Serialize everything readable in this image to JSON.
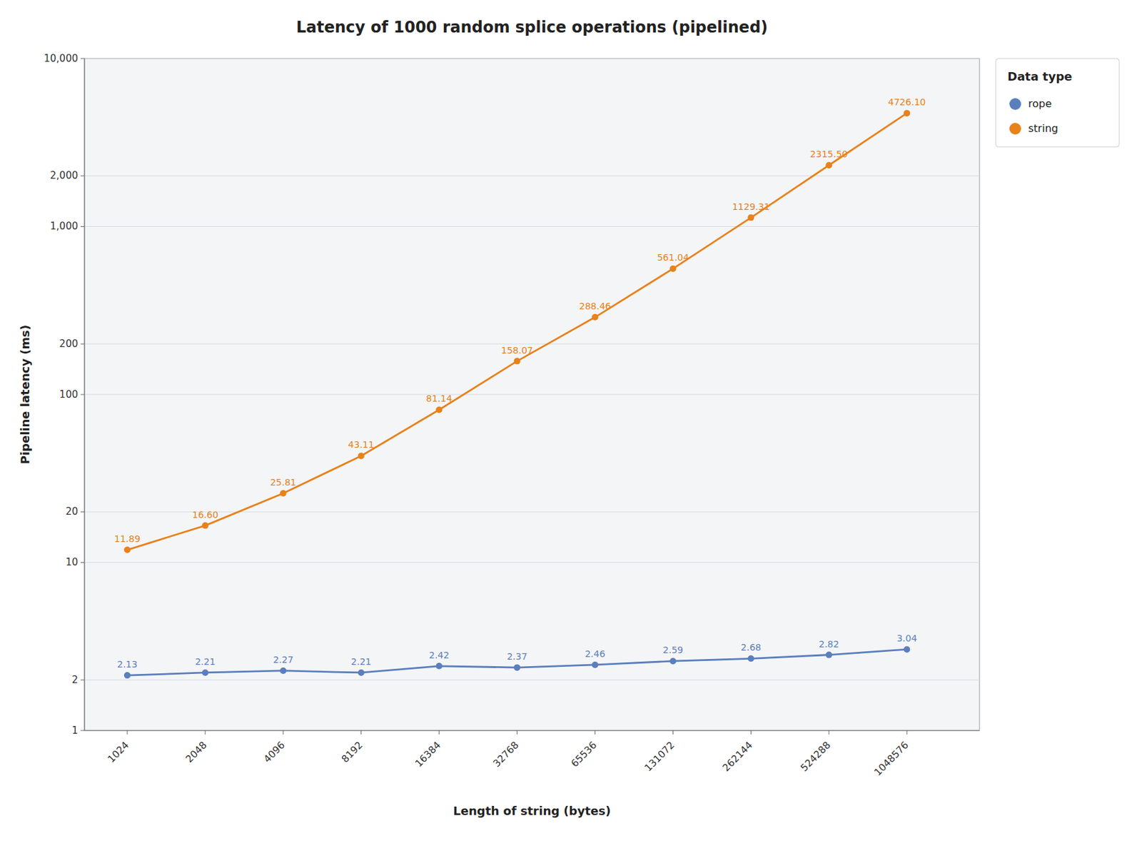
{
  "chart_data": {
    "type": "line",
    "title": "Latency of 1000 random splice operations (pipelined)",
    "x_label": "Length of string (bytes)",
    "y_label": "Pipeline latency (ms)",
    "legend_title": "Data type",
    "x": [
      1024,
      2048,
      4096,
      8192,
      16384,
      32768,
      65536,
      131072,
      262144,
      524288,
      1048576
    ],
    "series": [
      {
        "name": "rope",
        "color": "#5b7fbd",
        "values": [
          2.13,
          2.21,
          2.27,
          2.21,
          2.42,
          2.37,
          2.46,
          2.59,
          2.68,
          2.82,
          3.04
        ],
        "value_labels": [
          "2.13",
          "2.21",
          "2.27",
          "2.21",
          "2.42",
          "2.37",
          "2.46",
          "2.59",
          "2.68",
          "2.82",
          "3.04"
        ]
      },
      {
        "name": "string",
        "color": "#e8821a",
        "values": [
          11.89,
          16.6,
          25.81,
          43.11,
          81.14,
          158.07,
          288.46,
          561.04,
          1129.31,
          2315.5,
          4726.1
        ],
        "value_labels": [
          "11.89",
          "16.60",
          "25.81",
          "43.11",
          "81.14",
          "158.07",
          "288.46",
          "561.04",
          "1129.31",
          "2315.50",
          "4726.10"
        ]
      }
    ],
    "log": true,
    "xlim": [
      700,
      2000000
    ],
    "xticks": [
      1024,
      2048,
      4096,
      8192,
      16384,
      32768,
      65536,
      131072,
      262144,
      524288,
      1048576
    ],
    "ylim": [
      1,
      10000
    ],
    "yticks": [
      1,
      2,
      10,
      20,
      100,
      200,
      {
        "value": 1000,
        "label": "1,000"
      },
      {
        "value": 2000,
        "label": "2,000"
      },
      {
        "value": 10000,
        "label": "10,000"
      }
    ],
    "grid": true,
    "legend": "right",
    "data_labels": true,
    "marker": "circle"
  }
}
